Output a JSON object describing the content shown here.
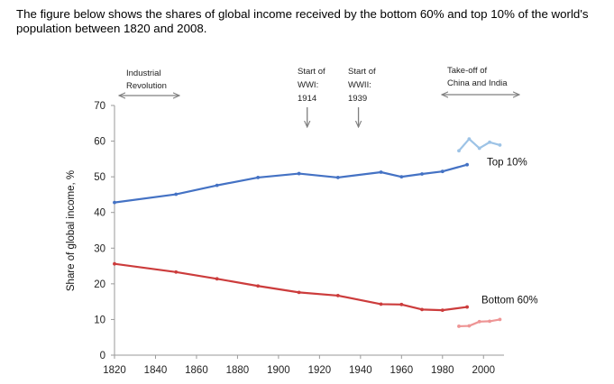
{
  "intro": "The figure below shows the shares of global income received by the bottom 60% and top 10% of the world's population between 1820 and 2008.",
  "chart_data": {
    "type": "line",
    "title": "",
    "xlabel": "",
    "ylabel": "Share of global income, %",
    "xlim": [
      1820,
      2010
    ],
    "ylim": [
      0,
      70
    ],
    "xticks": [
      1820,
      1840,
      1860,
      1880,
      1900,
      1920,
      1940,
      1960,
      1980,
      2000
    ],
    "yticks": [
      0,
      10,
      20,
      30,
      40,
      50,
      60,
      70
    ],
    "series": [
      {
        "name": "Top 10%",
        "label": "Top 10%",
        "color": "#4472c4",
        "x": [
          1820,
          1850,
          1870,
          1890,
          1910,
          1929,
          1950,
          1960,
          1970,
          1980,
          1992
        ],
        "y": [
          42.8,
          45.1,
          47.6,
          49.8,
          50.9,
          49.8,
          51.3,
          50.0,
          50.8,
          51.5,
          53.4
        ]
      },
      {
        "name": "Top 10% (recent)",
        "label": "",
        "color": "#9dc3e6",
        "x": [
          1988,
          1993,
          1998,
          2003,
          2008
        ],
        "y": [
          57.3,
          60.6,
          58.0,
          59.7,
          58.9
        ]
      },
      {
        "name": "Bottom 60%",
        "label": "Bottom 60%",
        "color": "#cc3c3c",
        "x": [
          1820,
          1850,
          1870,
          1890,
          1910,
          1929,
          1950,
          1960,
          1970,
          1980,
          1992
        ],
        "y": [
          25.6,
          23.3,
          21.4,
          19.4,
          17.6,
          16.7,
          14.3,
          14.2,
          12.8,
          12.6,
          13.5
        ]
      },
      {
        "name": "Bottom 60% (recent)",
        "label": "",
        "color": "#ee9595",
        "x": [
          1988,
          1993,
          1998,
          2003,
          2008
        ],
        "y": [
          8.1,
          8.2,
          9.4,
          9.5,
          10.0
        ]
      }
    ],
    "annotations": {
      "industrial": {
        "lines": [
          "Industrial",
          "Revolution"
        ],
        "x_from": 1820,
        "x_to": 1850
      },
      "ww1": {
        "lines": [
          "Start of",
          "WWI:",
          "1914"
        ],
        "x": 1914
      },
      "ww2": {
        "lines": [
          "Start of",
          "WWII:",
          "1939"
        ],
        "x": 1939
      },
      "takeoff": {
        "lines": [
          "Take-off of",
          "China and India"
        ],
        "x_from": 1980,
        "x_to": 2010
      }
    },
    "colors": {
      "axis": "#9a9a9a",
      "arrow": "#7f7f7f"
    }
  }
}
